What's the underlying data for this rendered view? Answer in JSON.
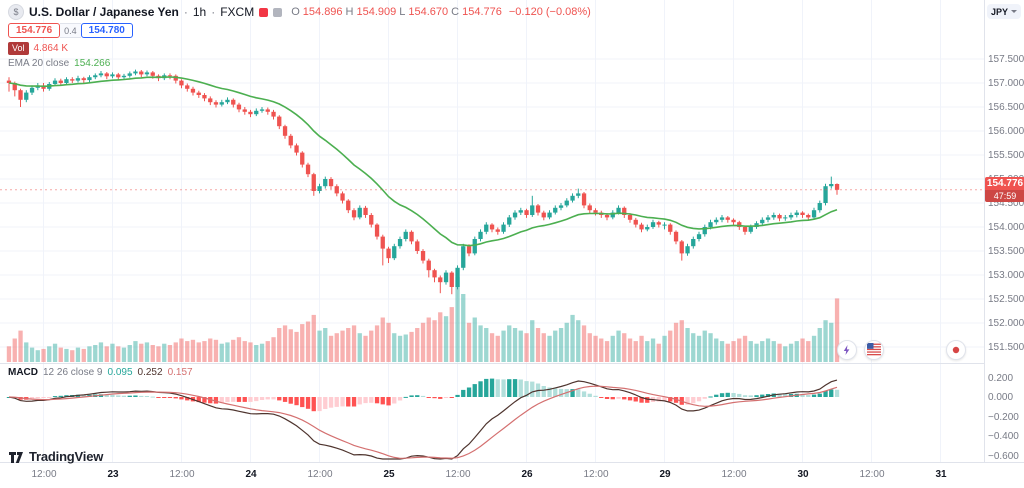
{
  "header": {
    "symbol": "U.S. Dollar / Japanese Yen",
    "separator": "·",
    "interval": "1h",
    "exchange": "FXCM",
    "ohlc": {
      "o_label": "O",
      "o": "154.896",
      "h_label": "H",
      "h": "154.909",
      "l_label": "L",
      "l": "154.670",
      "c_label": "C",
      "c": "154.776",
      "change": "−0.120 (−0.08%)"
    },
    "sell_price": "154.776",
    "spread": "0.4",
    "buy_price": "154.780",
    "volume_label": "Vol",
    "volume_value": "4.864 K",
    "ema_label": "EMA 20 close",
    "ema_value": "154.266"
  },
  "price_axis": {
    "currency": "JPY",
    "labels": [
      "157.500",
      "157.000",
      "156.500",
      "156.000",
      "155.500",
      "155.000",
      "154.500",
      "154.000",
      "153.500",
      "153.000",
      "152.500",
      "152.000",
      "151.500"
    ],
    "last_price": "154.776",
    "countdown": "47:59"
  },
  "macd_legend": {
    "title": "MACD",
    "params": "12 26 close 9",
    "hist": "0.095",
    "macd": "0.252",
    "signal": "0.157"
  },
  "macd_axis": [
    "0.200",
    "0.000",
    "−0.200",
    "−0.400",
    "−0.600"
  ],
  "time_axis": [
    {
      "label": "12:00",
      "i": 6
    },
    {
      "label": "23",
      "i": 18,
      "major": true
    },
    {
      "label": "12:00",
      "i": 30
    },
    {
      "label": "24",
      "i": 42,
      "major": true
    },
    {
      "label": "12:00",
      "i": 54
    },
    {
      "label": "25",
      "i": 66,
      "major": true
    },
    {
      "label": "12:00",
      "i": 78
    },
    {
      "label": "26",
      "i": 90,
      "major": true
    },
    {
      "label": "12:00",
      "i": 102
    },
    {
      "label": "29",
      "i": 114,
      "major": true
    },
    {
      "label": "12:00",
      "i": 126
    },
    {
      "label": "30",
      "i": 138,
      "major": true
    },
    {
      "label": "12:00",
      "i": 150
    },
    {
      "label": "31",
      "i": 162,
      "major": true
    }
  ],
  "logo": {
    "text": "TradingView"
  },
  "events": [
    {
      "name": "lightning-event",
      "i": 145.5
    },
    {
      "name": "us-flag-event",
      "i": 150.2
    },
    {
      "name": "japan-flag-event",
      "i": 164.6
    }
  ],
  "colors": {
    "up": "#26a69a",
    "down": "#ef5350",
    "vol_up": "rgba(38,166,154,0.45)",
    "vol_down": "rgba(239,83,80,0.45)",
    "ema": "#4caf50",
    "macd": "#4e342e",
    "signal": "#d47070",
    "hist_up": "#26a69a",
    "hist_up_fall": "#b2dfdb",
    "hist_down": "#ff5252",
    "hist_down_rise": "#ffcdd2",
    "grid": "#f0f3fa",
    "axis_text": "#787b86",
    "sell": "#ef5350",
    "buy": "#2962ff",
    "badge": "#ef5350",
    "vol_chip": "#b03a3a"
  },
  "chart_data": {
    "type": "candlestick",
    "title": "U.S. Dollar / Japanese Yen · 1h · FXCM",
    "price_ylim": [
      151.2,
      158.0
    ],
    "macd_ylim": [
      -0.7,
      0.3
    ],
    "indicators": {
      "ema": {
        "period": 20,
        "source": "close"
      },
      "macd": {
        "fast": 12,
        "slow": 26,
        "source": "close",
        "signal": 9
      }
    },
    "candles": [
      [
        157.05,
        157.12,
        156.82,
        157.0
      ],
      [
        157.0,
        157.03,
        156.72,
        156.85
      ],
      [
        156.85,
        156.88,
        156.5,
        156.65
      ],
      [
        156.65,
        156.85,
        156.6,
        156.8
      ],
      [
        156.8,
        156.95,
        156.75,
        156.9
      ],
      [
        156.9,
        157.0,
        156.85,
        156.95
      ],
      [
        156.95,
        157.0,
        156.82,
        156.88
      ],
      [
        156.88,
        157.02,
        156.84,
        156.98
      ],
      [
        156.98,
        157.1,
        156.94,
        157.05
      ],
      [
        157.05,
        157.09,
        156.95,
        157.0
      ],
      [
        157.0,
        157.12,
        156.96,
        157.08
      ],
      [
        157.08,
        157.12,
        157.0,
        157.05
      ],
      [
        157.05,
        157.15,
        157.01,
        157.1
      ],
      [
        157.1,
        157.13,
        157.0,
        157.06
      ],
      [
        157.06,
        157.16,
        157.02,
        157.12
      ],
      [
        157.12,
        157.2,
        157.08,
        157.16
      ],
      [
        157.16,
        157.25,
        157.12,
        157.2
      ],
      [
        157.2,
        157.23,
        157.08,
        157.14
      ],
      [
        157.14,
        157.22,
        157.1,
        157.18
      ],
      [
        157.18,
        157.21,
        157.06,
        157.12
      ],
      [
        157.12,
        157.19,
        157.08,
        157.15
      ],
      [
        157.15,
        157.24,
        157.11,
        157.2
      ],
      [
        157.2,
        157.28,
        157.16,
        157.24
      ],
      [
        157.24,
        157.27,
        157.12,
        157.18
      ],
      [
        157.18,
        157.26,
        157.14,
        157.22
      ],
      [
        157.22,
        157.25,
        157.09,
        157.15
      ],
      [
        157.15,
        157.18,
        157.04,
        157.1
      ],
      [
        157.1,
        157.2,
        157.06,
        157.16
      ],
      [
        157.16,
        157.2,
        157.08,
        157.15
      ],
      [
        157.15,
        157.18,
        156.99,
        157.05
      ],
      [
        157.05,
        157.08,
        156.89,
        156.95
      ],
      [
        156.95,
        156.99,
        156.82,
        156.88
      ],
      [
        156.88,
        156.92,
        156.74,
        156.8
      ],
      [
        156.8,
        156.84,
        156.69,
        156.75
      ],
      [
        156.75,
        156.79,
        156.62,
        156.68
      ],
      [
        156.68,
        156.72,
        156.54,
        156.6
      ],
      [
        156.6,
        156.64,
        156.49,
        156.55
      ],
      [
        156.55,
        156.65,
        156.51,
        156.6
      ],
      [
        156.6,
        156.7,
        156.56,
        156.65
      ],
      [
        156.65,
        156.68,
        156.49,
        156.55
      ],
      [
        156.55,
        156.59,
        156.39,
        156.45
      ],
      [
        156.45,
        156.5,
        156.34,
        156.4
      ],
      [
        156.4,
        156.44,
        156.29,
        156.35
      ],
      [
        156.35,
        156.47,
        156.31,
        156.42
      ],
      [
        156.42,
        156.5,
        156.38,
        156.45
      ],
      [
        156.45,
        156.49,
        156.34,
        156.4
      ],
      [
        156.4,
        156.44,
        156.24,
        156.3
      ],
      [
        156.3,
        156.33,
        156.04,
        156.1
      ],
      [
        156.1,
        156.13,
        155.84,
        155.9
      ],
      [
        155.9,
        155.94,
        155.64,
        155.7
      ],
      [
        155.7,
        155.74,
        155.49,
        155.55
      ],
      [
        155.55,
        155.58,
        155.24,
        155.3
      ],
      [
        155.3,
        155.34,
        155.04,
        155.1
      ],
      [
        155.1,
        155.13,
        154.65,
        154.75
      ],
      [
        154.75,
        154.9,
        154.7,
        154.85
      ],
      [
        154.85,
        155.05,
        154.8,
        155.0
      ],
      [
        155.0,
        155.04,
        154.79,
        154.85
      ],
      [
        154.85,
        154.89,
        154.64,
        154.7
      ],
      [
        154.7,
        154.74,
        154.49,
        154.55
      ],
      [
        154.55,
        154.58,
        154.29,
        154.35
      ],
      [
        154.35,
        154.39,
        154.14,
        154.2
      ],
      [
        154.2,
        154.45,
        154.16,
        154.4
      ],
      [
        154.4,
        154.44,
        154.19,
        154.25
      ],
      [
        154.25,
        154.29,
        153.99,
        154.05
      ],
      [
        154.05,
        154.08,
        153.74,
        153.8
      ],
      [
        153.8,
        153.84,
        153.2,
        153.55
      ],
      [
        153.55,
        153.59,
        153.25,
        153.35
      ],
      [
        153.35,
        153.65,
        153.31,
        153.6
      ],
      [
        153.6,
        153.8,
        153.55,
        153.75
      ],
      [
        153.75,
        153.95,
        153.7,
        153.9
      ],
      [
        153.9,
        153.93,
        153.64,
        153.7
      ],
      [
        153.7,
        153.74,
        153.44,
        153.5
      ],
      [
        153.5,
        153.54,
        153.24,
        153.3
      ],
      [
        153.3,
        153.34,
        152.95,
        153.1
      ],
      [
        153.1,
        153.13,
        152.85,
        152.95
      ],
      [
        152.95,
        152.99,
        152.62,
        152.85
      ],
      [
        152.85,
        153.1,
        152.8,
        153.05
      ],
      [
        153.05,
        153.08,
        152.6,
        152.75
      ],
      [
        152.75,
        153.2,
        152.7,
        153.15
      ],
      [
        153.15,
        153.65,
        153.1,
        153.6
      ],
      [
        153.6,
        153.64,
        153.39,
        153.45
      ],
      [
        153.45,
        153.8,
        153.41,
        153.75
      ],
      [
        153.75,
        153.95,
        153.7,
        153.9
      ],
      [
        153.9,
        154.1,
        153.85,
        154.05
      ],
      [
        154.05,
        154.08,
        153.89,
        153.95
      ],
      [
        153.95,
        153.99,
        153.84,
        153.9
      ],
      [
        153.9,
        154.1,
        153.86,
        154.05
      ],
      [
        154.05,
        154.25,
        154.0,
        154.2
      ],
      [
        154.2,
        154.35,
        154.15,
        154.3
      ],
      [
        154.3,
        154.4,
        154.25,
        154.35
      ],
      [
        154.35,
        154.38,
        154.19,
        154.25
      ],
      [
        154.25,
        154.65,
        154.21,
        154.45
      ],
      [
        154.45,
        154.48,
        154.24,
        154.3
      ],
      [
        154.3,
        154.34,
        154.14,
        154.2
      ],
      [
        154.2,
        154.35,
        154.16,
        154.3
      ],
      [
        154.3,
        154.45,
        154.26,
        154.4
      ],
      [
        154.4,
        154.5,
        154.35,
        154.45
      ],
      [
        154.45,
        154.6,
        154.41,
        154.55
      ],
      [
        154.55,
        154.7,
        154.51,
        154.65
      ],
      [
        154.65,
        154.8,
        154.6,
        154.7
      ],
      [
        154.7,
        154.73,
        154.39,
        154.45
      ],
      [
        154.45,
        154.49,
        154.29,
        154.35
      ],
      [
        154.35,
        154.39,
        154.24,
        154.3
      ],
      [
        154.3,
        154.34,
        154.19,
        154.25
      ],
      [
        154.25,
        154.29,
        154.14,
        154.2
      ],
      [
        154.2,
        154.35,
        154.16,
        154.3
      ],
      [
        154.3,
        154.45,
        154.26,
        154.4
      ],
      [
        154.4,
        154.43,
        154.19,
        154.25
      ],
      [
        154.25,
        154.29,
        154.09,
        154.15
      ],
      [
        154.15,
        154.19,
        153.99,
        154.05
      ],
      [
        154.05,
        154.09,
        153.89,
        153.95
      ],
      [
        153.95,
        154.05,
        153.91,
        154.0
      ],
      [
        154.0,
        154.15,
        153.96,
        154.1
      ],
      [
        154.1,
        154.13,
        153.99,
        154.05
      ],
      [
        154.05,
        154.1,
        153.95,
        154.05
      ],
      [
        154.05,
        154.08,
        153.84,
        153.9
      ],
      [
        153.9,
        153.93,
        153.64,
        153.7
      ],
      [
        153.7,
        153.73,
        153.3,
        153.45
      ],
      [
        153.45,
        153.65,
        153.4,
        153.6
      ],
      [
        153.6,
        153.8,
        153.55,
        153.75
      ],
      [
        153.75,
        153.9,
        153.7,
        153.85
      ],
      [
        153.85,
        154.05,
        153.8,
        154.0
      ],
      [
        154.0,
        154.15,
        153.95,
        154.1
      ],
      [
        154.1,
        154.2,
        154.05,
        154.15
      ],
      [
        154.15,
        154.25,
        154.1,
        154.2
      ],
      [
        154.2,
        154.23,
        154.09,
        154.15
      ],
      [
        154.15,
        154.18,
        154.04,
        154.1
      ],
      [
        154.1,
        154.13,
        153.94,
        154.0
      ],
      [
        154.0,
        154.03,
        153.84,
        153.9
      ],
      [
        153.9,
        154.05,
        153.86,
        154.0
      ],
      [
        154.0,
        154.12,
        153.96,
        154.08
      ],
      [
        154.08,
        154.2,
        154.04,
        154.15
      ],
      [
        154.15,
        154.25,
        154.1,
        154.2
      ],
      [
        154.2,
        154.3,
        154.15,
        154.25
      ],
      [
        154.25,
        154.28,
        154.12,
        154.18
      ],
      [
        154.18,
        154.25,
        154.13,
        154.2
      ],
      [
        154.2,
        154.3,
        154.15,
        154.25
      ],
      [
        154.25,
        154.35,
        154.2,
        154.3
      ],
      [
        154.3,
        154.33,
        154.19,
        154.25
      ],
      [
        154.25,
        154.28,
        154.14,
        154.2
      ],
      [
        154.2,
        154.4,
        154.16,
        154.35
      ],
      [
        154.35,
        154.55,
        154.3,
        154.5
      ],
      [
        154.5,
        154.9,
        154.45,
        154.85
      ],
      [
        154.85,
        155.05,
        154.8,
        154.896
      ],
      [
        154.896,
        154.909,
        154.67,
        154.776
      ]
    ],
    "volumes_k": [
      1.2,
      1.8,
      2.4,
      1.5,
      1.1,
      0.9,
      1.0,
      1.2,
      1.4,
      1.1,
      1.0,
      0.9,
      1.1,
      1.0,
      1.2,
      1.3,
      1.5,
      1.2,
      1.4,
      1.2,
      1.1,
      1.3,
      1.6,
      1.4,
      1.5,
      1.3,
      1.2,
      1.4,
      1.3,
      1.5,
      1.8,
      1.6,
      1.7,
      1.5,
      1.6,
      1.8,
      1.7,
      1.4,
      1.5,
      1.7,
      1.9,
      1.6,
      1.5,
      1.3,
      1.4,
      1.6,
      1.9,
      2.6,
      2.8,
      2.5,
      2.3,
      2.9,
      3.1,
      3.6,
      2.4,
      2.6,
      2.0,
      2.2,
      2.4,
      2.6,
      2.8,
      2.2,
      2.0,
      2.4,
      2.8,
      3.4,
      3.0,
      2.2,
      2.0,
      2.1,
      2.3,
      2.6,
      3.0,
      3.4,
      3.2,
      3.8,
      3.5,
      4.2,
      6.5,
      5.2,
      3.0,
      3.4,
      2.8,
      2.6,
      2.2,
      2.0,
      2.4,
      2.8,
      2.6,
      2.4,
      2.2,
      3.2,
      2.6,
      2.2,
      2.0,
      2.4,
      2.6,
      3.0,
      3.6,
      3.2,
      2.8,
      2.2,
      2.0,
      1.8,
      1.6,
      2.0,
      2.4,
      2.2,
      1.8,
      1.6,
      2.0,
      1.6,
      1.8,
      1.4,
      2.0,
      2.4,
      3.0,
      3.2,
      2.6,
      2.2,
      2.0,
      2.4,
      2.2,
      1.8,
      1.6,
      1.4,
      1.6,
      1.8,
      2.0,
      1.6,
      1.4,
      1.6,
      1.8,
      1.6,
      1.4,
      1.2,
      1.4,
      1.6,
      1.8,
      1.6,
      2.0,
      2.6,
      3.2,
      3.0,
      4.864
    ]
  }
}
